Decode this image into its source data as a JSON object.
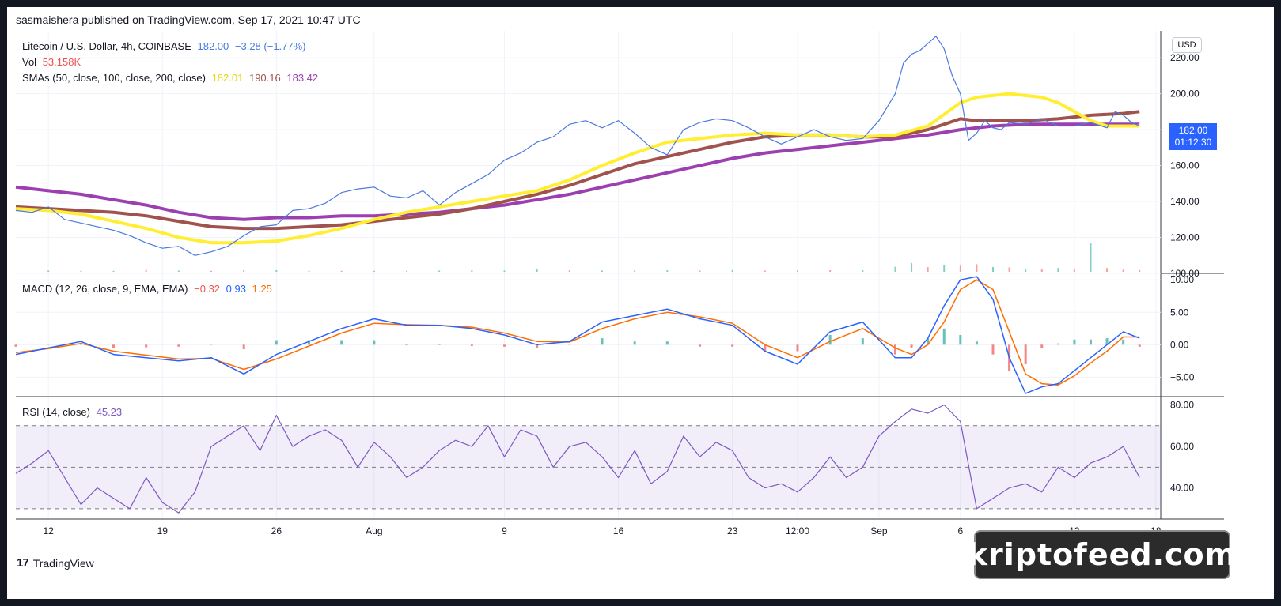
{
  "header": {
    "published": "sasmaishera published on TradingView.com, Sep 17, 2021 10:47 UTC"
  },
  "legend": {
    "symbol": "Litecoin / U.S. Dollar, 4h, COINBASE",
    "last": "182.00",
    "change": "−3.28 (−1.77%)",
    "vol_label": "Vol",
    "vol_value": "53.158K",
    "sma_label": "SMAs (50, close, 100, close, 200, close)",
    "sma50": "182.01",
    "sma100": "190.16",
    "sma200": "183.42",
    "macd_label": "MACD (12, 26, close, 9, EMA, EMA)",
    "macd_hist": "−0.32",
    "macd_line": "0.93",
    "macd_signal": "1.25",
    "rsi_label": "RSI (14, close)",
    "rsi_value": "45.23"
  },
  "price_tag": {
    "price": "182.00",
    "countdown": "01:12:30"
  },
  "currency_button": "USD",
  "brand": {
    "mark": "17",
    "name": "TradingView"
  },
  "watermark": "kriptofeed.com",
  "colors": {
    "price": "#4a79e0",
    "sma50": "#ffee32",
    "sma100": "#a0524d",
    "sma200": "#9c3fb0",
    "macd": "#2962ff",
    "signal": "#ff6d00",
    "rsi": "#7e57c2",
    "up": "#26a69a",
    "down": "#ef5350"
  },
  "chart_data": [
    {
      "type": "line",
      "panel": "price",
      "x_ticks": [
        "12",
        "19",
        "26",
        "Aug",
        "9",
        "16",
        "23",
        "12:00",
        "Sep",
        "6",
        "13",
        "18"
      ],
      "x_tick_pos": [
        0,
        7,
        14,
        20,
        28,
        35,
        42,
        46,
        51,
        56,
        63,
        68
      ],
      "y_ticks": [
        100,
        120,
        140,
        160,
        180,
        200,
        220
      ],
      "ylim": [
        100,
        235
      ],
      "xlim": [
        -2,
        68.3
      ],
      "series": [
        {
          "name": "Litecoin / U.S. Dollar",
          "x": [
            -2,
            -1,
            0,
            1,
            2,
            3,
            4,
            5,
            6,
            7,
            8,
            9,
            10,
            11,
            12,
            13,
            14,
            15,
            16,
            17,
            18,
            19,
            20,
            21,
            22,
            23,
            24,
            25,
            26,
            27,
            28,
            29,
            30,
            31,
            32,
            33,
            34,
            35,
            36,
            37,
            38,
            39,
            40,
            41,
            42,
            43,
            44,
            45,
            46,
            47,
            48,
            49,
            50,
            51,
            52,
            52.5,
            53,
            53.5,
            54,
            54.5,
            55,
            55.5,
            56,
            56.5,
            57,
            57.5,
            58,
            58.5,
            59,
            60,
            61,
            62,
            63,
            64,
            65,
            65.5,
            66,
            66.5,
            67
          ],
          "values": [
            135,
            134,
            137,
            130,
            128,
            126,
            124,
            121,
            117,
            114,
            115,
            110,
            112,
            115,
            121,
            126,
            127,
            135,
            136,
            139,
            145,
            147,
            148,
            143,
            142,
            146,
            138,
            145,
            150,
            155,
            163,
            167,
            173,
            176,
            183,
            185,
            181,
            185,
            178,
            170,
            166,
            180,
            184,
            186,
            185,
            181,
            176,
            172,
            176,
            180,
            176,
            174,
            175,
            185,
            200,
            217,
            222,
            224,
            228,
            232,
            225,
            210,
            200,
            174,
            178,
            185,
            181,
            180,
            184,
            183,
            186,
            182,
            182,
            184,
            181,
            190,
            188,
            184,
            182
          ]
        },
        {
          "name": "SMA 50",
          "x": [
            -2,
            0,
            2,
            4,
            6,
            8,
            10,
            12,
            14,
            16,
            18,
            20,
            22,
            24,
            26,
            28,
            30,
            32,
            34,
            36,
            38,
            40,
            42,
            44,
            46,
            48,
            50,
            52,
            54,
            56,
            57,
            58,
            59,
            60,
            61,
            62,
            63,
            64,
            65,
            66,
            67
          ],
          "values": [
            136,
            135,
            133,
            129,
            125,
            120,
            117,
            117,
            118,
            121,
            125,
            130,
            134,
            137,
            140,
            143,
            146,
            152,
            160,
            167,
            173,
            175,
            177,
            178,
            177,
            177,
            176,
            177,
            182,
            195,
            198,
            199,
            200,
            199,
            198,
            195,
            190,
            185,
            182,
            182,
            182
          ]
        },
        {
          "name": "SMA 100",
          "x": [
            -2,
            0,
            2,
            4,
            6,
            8,
            10,
            12,
            14,
            16,
            18,
            20,
            22,
            24,
            26,
            28,
            30,
            32,
            34,
            36,
            38,
            40,
            42,
            44,
            46,
            48,
            50,
            52,
            54,
            55,
            56,
            57,
            58,
            60,
            62,
            64,
            66,
            67
          ],
          "values": [
            137,
            136,
            135,
            134,
            132,
            129,
            126,
            125,
            125,
            126,
            127,
            129,
            131,
            133,
            136,
            140,
            144,
            149,
            155,
            161,
            165,
            169,
            173,
            176,
            177,
            177,
            176,
            176,
            180,
            183,
            186,
            185,
            185,
            185,
            186,
            188,
            189,
            190
          ]
        },
        {
          "name": "SMA 200",
          "x": [
            -2,
            0,
            2,
            4,
            6,
            8,
            10,
            12,
            14,
            16,
            18,
            20,
            22,
            24,
            26,
            28,
            30,
            32,
            34,
            36,
            38,
            40,
            42,
            44,
            46,
            48,
            50,
            52,
            54,
            56,
            58,
            60,
            62,
            64,
            66,
            67
          ],
          "values": [
            148,
            146,
            144,
            141,
            138,
            134,
            131,
            130,
            131,
            131,
            132,
            132,
            133,
            134,
            136,
            138,
            141,
            144,
            148,
            152,
            156,
            160,
            164,
            167,
            169,
            171,
            173,
            175,
            177,
            180,
            182,
            183,
            183,
            183,
            183,
            183
          ]
        }
      ]
    },
    {
      "type": "bar",
      "panel": "volume",
      "x": [
        0,
        2,
        4,
        6,
        8,
        10,
        12,
        14,
        16,
        18,
        20,
        22,
        24,
        26,
        28,
        30,
        32,
        34,
        36,
        38,
        40,
        42,
        44,
        46,
        48,
        50,
        52,
        53,
        54,
        55,
        56,
        57,
        58,
        59,
        60,
        61,
        62,
        63,
        64,
        65,
        66,
        67
      ],
      "values": [
        0.4,
        0.3,
        0.3,
        0.6,
        0.4,
        0.3,
        0.5,
        0.5,
        0.3,
        0.3,
        0.3,
        0.3,
        0.4,
        0.5,
        0.4,
        0.8,
        0.5,
        0.4,
        0.4,
        0.5,
        0.4,
        0.5,
        0.4,
        0.4,
        0.5,
        0.5,
        1.6,
        2.8,
        1.5,
        2.2,
        1.9,
        2.4,
        1.5,
        1.4,
        1.0,
        0.9,
        1.2,
        0.8,
        9.0,
        1.2,
        0.7,
        0.5
      ],
      "direction": [
        "u",
        "d",
        "u",
        "d",
        "u",
        "d",
        "d",
        "u",
        "u",
        "d",
        "u",
        "d",
        "u",
        "d",
        "u",
        "u",
        "d",
        "u",
        "d",
        "u",
        "d",
        "u",
        "d",
        "u",
        "d",
        "u",
        "u",
        "u",
        "d",
        "u",
        "d",
        "d",
        "u",
        "d",
        "u",
        "d",
        "u",
        "d",
        "u",
        "d",
        "d",
        "d"
      ]
    },
    {
      "type": "line",
      "panel": "macd",
      "ylim": [
        -8,
        11
      ],
      "y_ticks": [
        -5,
        0,
        5,
        10
      ],
      "series": [
        {
          "name": "MACD",
          "x": [
            -2,
            0,
            2,
            4,
            6,
            8,
            10,
            12,
            14,
            16,
            18,
            20,
            22,
            24,
            26,
            28,
            30,
            32,
            34,
            36,
            38,
            40,
            42,
            44,
            46,
            48,
            50,
            52,
            53,
            54,
            55,
            56,
            57,
            58,
            59,
            60,
            61,
            62,
            63,
            64,
            65,
            66,
            67
          ],
          "values": [
            -1.5,
            -0.5,
            0.5,
            -1.5,
            -2.0,
            -2.5,
            -2.0,
            -4.5,
            -1.5,
            0.5,
            2.5,
            4.0,
            3.0,
            3.0,
            2.5,
            1.5,
            0.0,
            0.5,
            3.5,
            4.5,
            5.5,
            4.0,
            3.0,
            -1.0,
            -3.0,
            2.0,
            3.5,
            -2.0,
            -2.0,
            1.0,
            6.0,
            10.0,
            10.5,
            7.0,
            -2.0,
            -7.5,
            -6.5,
            -6.0,
            -4.0,
            -2.0,
            0.0,
            2.0,
            1.0
          ]
        },
        {
          "name": "Signal",
          "x": [
            -2,
            0,
            2,
            4,
            6,
            8,
            10,
            12,
            14,
            16,
            18,
            20,
            22,
            24,
            26,
            28,
            30,
            32,
            34,
            36,
            38,
            40,
            42,
            44,
            46,
            48,
            50,
            52,
            53,
            54,
            55,
            56,
            57,
            58,
            59,
            60,
            61,
            62,
            63,
            64,
            65,
            66,
            67
          ],
          "values": [
            -1.2,
            -0.6,
            0.2,
            -1.0,
            -1.6,
            -2.2,
            -2.1,
            -3.8,
            -2.2,
            -0.2,
            1.8,
            3.3,
            3.1,
            3.0,
            2.7,
            1.8,
            0.5,
            0.4,
            2.5,
            4.0,
            5.0,
            4.3,
            3.3,
            0.0,
            -2.0,
            0.5,
            2.5,
            -0.5,
            -1.5,
            0.0,
            3.5,
            8.5,
            10.0,
            8.5,
            2.0,
            -4.5,
            -6.0,
            -6.2,
            -4.8,
            -2.8,
            -1.0,
            1.2,
            1.2
          ]
        },
        {
          "name": "Histogram",
          "x": [
            -2,
            0,
            2,
            4,
            6,
            8,
            10,
            12,
            14,
            16,
            18,
            20,
            22,
            24,
            26,
            28,
            30,
            32,
            34,
            36,
            38,
            40,
            42,
            44,
            46,
            48,
            50,
            52,
            53,
            54,
            55,
            56,
            57,
            58,
            59,
            60,
            61,
            62,
            63,
            64,
            65,
            66,
            67
          ],
          "values": [
            -0.3,
            0.1,
            0.3,
            -0.5,
            -0.4,
            -0.3,
            0.1,
            -0.7,
            0.7,
            0.7,
            0.7,
            0.7,
            -0.1,
            0.0,
            -0.2,
            -0.3,
            -0.5,
            0.1,
            1.0,
            0.5,
            0.5,
            -0.3,
            -0.3,
            -1.0,
            -1.0,
            1.5,
            1.0,
            -1.5,
            -0.5,
            1.0,
            2.5,
            1.5,
            0.5,
            -1.5,
            -4.0,
            -3.0,
            -0.5,
            0.2,
            0.8,
            0.8,
            1.0,
            0.8,
            -0.32
          ]
        }
      ]
    },
    {
      "type": "line",
      "panel": "rsi",
      "ylim": [
        25,
        84
      ],
      "y_ticks": [
        40,
        60,
        80
      ],
      "band": [
        30,
        70
      ],
      "series": [
        {
          "name": "RSI",
          "x": [
            -2,
            -1,
            0,
            1,
            2,
            3,
            4,
            5,
            6,
            7,
            8,
            9,
            10,
            11,
            12,
            13,
            14,
            15,
            16,
            17,
            18,
            19,
            20,
            21,
            22,
            23,
            24,
            25,
            26,
            27,
            28,
            29,
            30,
            31,
            32,
            33,
            34,
            35,
            36,
            37,
            38,
            39,
            40,
            41,
            42,
            43,
            44,
            45,
            46,
            47,
            48,
            49,
            50,
            51,
            52,
            53,
            54,
            55,
            56,
            57,
            58,
            59,
            60,
            61,
            62,
            63,
            64,
            65,
            66,
            67
          ],
          "values": [
            47,
            52,
            58,
            45,
            32,
            40,
            35,
            30,
            45,
            33,
            28,
            38,
            60,
            65,
            70,
            58,
            75,
            60,
            65,
            68,
            63,
            50,
            62,
            55,
            45,
            50,
            58,
            63,
            60,
            70,
            55,
            68,
            65,
            50,
            60,
            62,
            55,
            45,
            58,
            42,
            48,
            65,
            55,
            62,
            58,
            45,
            40,
            42,
            38,
            45,
            55,
            45,
            50,
            65,
            72,
            78,
            76,
            80,
            72,
            30,
            35,
            40,
            42,
            38,
            50,
            45,
            52,
            55,
            60,
            45
          ]
        }
      ]
    }
  ]
}
